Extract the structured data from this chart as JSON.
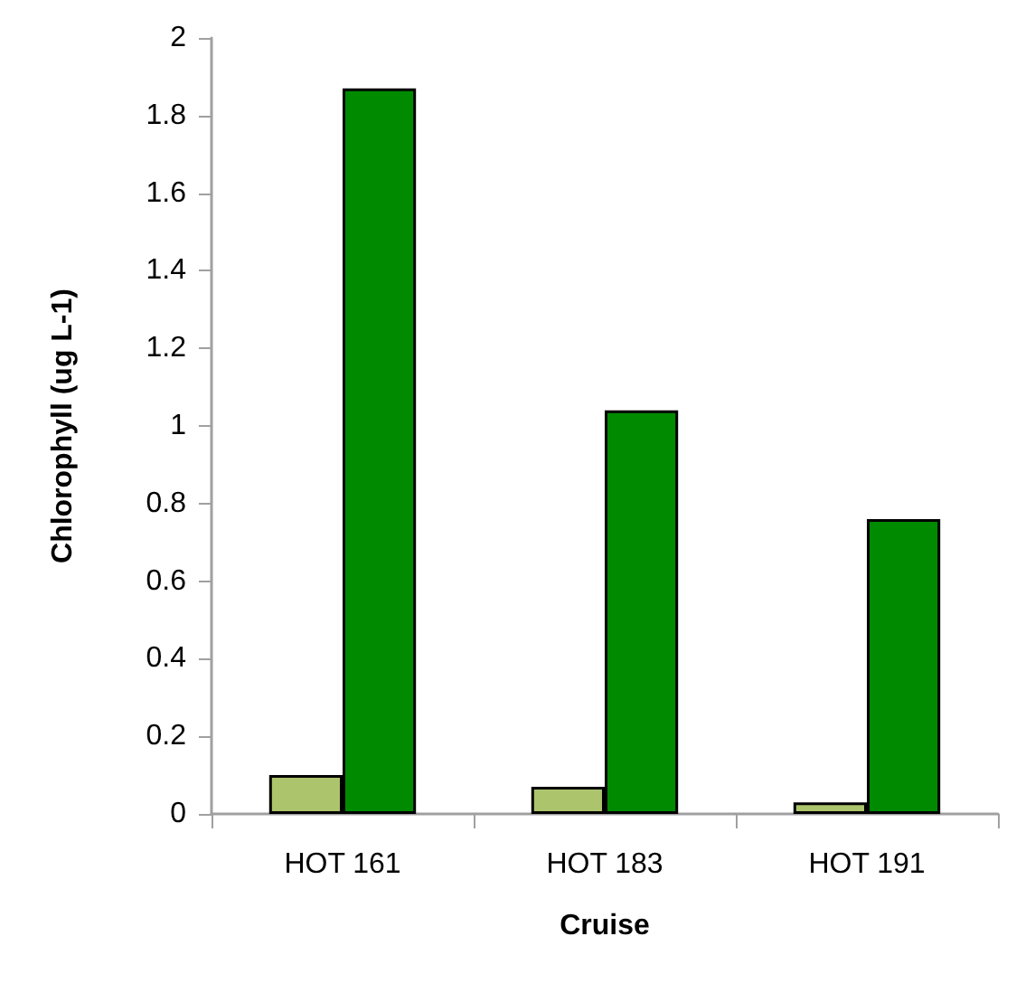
{
  "chart_data": {
    "type": "bar",
    "xlabel": "Cruise",
    "ylabel": "Chlorophyll (ug L-1)",
    "categories": [
      "HOT 161",
      "HOT 183",
      "HOT 191"
    ],
    "series": [
      {
        "color": "#acc46c",
        "values": [
          0.1,
          0.07,
          0.03
        ]
      },
      {
        "color": "#008a00",
        "values": [
          1.87,
          1.04,
          0.76
        ]
      }
    ],
    "ylim": [
      0,
      2
    ],
    "yticks": [
      0,
      0.2,
      0.4,
      0.6,
      0.8,
      1,
      1.2,
      1.4,
      1.6,
      1.8,
      2
    ],
    "grid": false
  }
}
